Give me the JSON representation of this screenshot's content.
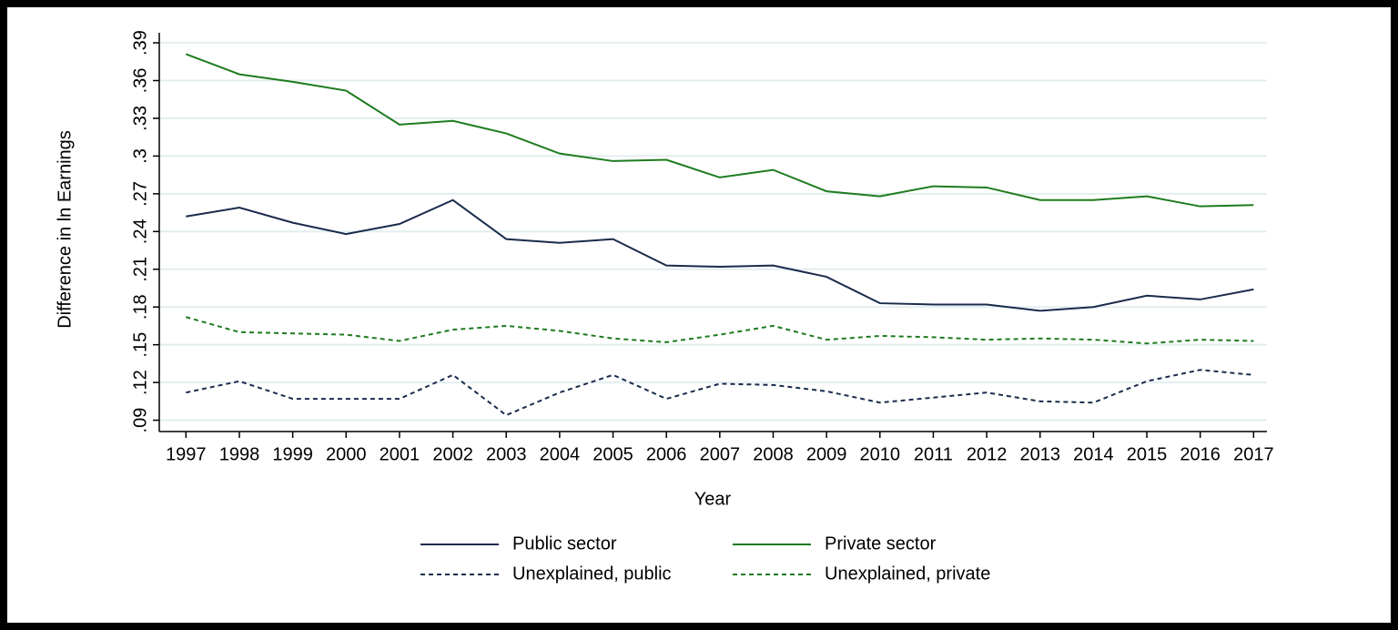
{
  "chart_data": {
    "type": "line",
    "xlabel": "Year",
    "ylabel": "Difference in ln Earnings",
    "x": [
      1997,
      1998,
      1999,
      2000,
      2001,
      2002,
      2003,
      2004,
      2005,
      2006,
      2007,
      2008,
      2009,
      2010,
      2011,
      2012,
      2013,
      2014,
      2015,
      2016,
      2017
    ],
    "xlim": [
      1996.5,
      2017.25
    ],
    "xticks": [
      1997,
      1998,
      1999,
      2000,
      2001,
      2002,
      2003,
      2004,
      2005,
      2006,
      2007,
      2008,
      2009,
      2010,
      2011,
      2012,
      2013,
      2014,
      2015,
      2016,
      2017
    ],
    "ylim": [
      0.081,
      0.398
    ],
    "yticks": [
      {
        "value": 0.09,
        "label": ".09"
      },
      {
        "value": 0.12,
        "label": ".12"
      },
      {
        "value": 0.15,
        "label": ".15"
      },
      {
        "value": 0.18,
        "label": ".18"
      },
      {
        "value": 0.21,
        "label": ".21"
      },
      {
        "value": 0.24,
        "label": ".24"
      },
      {
        "value": 0.27,
        "label": ".27"
      },
      {
        "value": 0.3,
        "label": ".3"
      },
      {
        "value": 0.33,
        "label": ".33"
      },
      {
        "value": 0.36,
        "label": ".36"
      },
      {
        "value": 0.39,
        "label": ".39"
      }
    ],
    "grid": true,
    "legend": "bottom",
    "series": [
      {
        "name": "Public sector",
        "color": "#1a2b4c",
        "style": "solid",
        "values": [
          0.252,
          0.259,
          0.247,
          0.238,
          0.246,
          0.265,
          0.234,
          0.231,
          0.234,
          0.213,
          0.212,
          0.213,
          0.204,
          0.183,
          0.182,
          0.182,
          0.177,
          0.18,
          0.189,
          0.186,
          0.194
        ]
      },
      {
        "name": "Private sector",
        "color": "#1e7b1e",
        "style": "solid",
        "values": [
          0.381,
          0.365,
          0.359,
          0.352,
          0.325,
          0.328,
          0.318,
          0.302,
          0.296,
          0.297,
          0.283,
          0.289,
          0.272,
          0.268,
          0.276,
          0.275,
          0.265,
          0.265,
          0.268,
          0.26,
          0.261
        ]
      },
      {
        "name": "Unexplained, public",
        "color": "#1a2b4c",
        "style": "dashed",
        "values": [
          0.112,
          0.121,
          0.107,
          0.107,
          0.107,
          0.126,
          0.094,
          0.112,
          0.126,
          0.107,
          0.119,
          0.118,
          0.113,
          0.104,
          0.108,
          0.112,
          0.105,
          0.104,
          0.121,
          0.13,
          0.126
        ]
      },
      {
        "name": "Unexplained, private",
        "color": "#1e7b1e",
        "style": "dashed",
        "values": [
          0.172,
          0.16,
          0.159,
          0.158,
          0.153,
          0.162,
          0.165,
          0.161,
          0.155,
          0.152,
          0.158,
          0.165,
          0.154,
          0.157,
          0.156,
          0.154,
          0.155,
          0.154,
          0.151,
          0.154,
          0.153
        ]
      }
    ]
  }
}
